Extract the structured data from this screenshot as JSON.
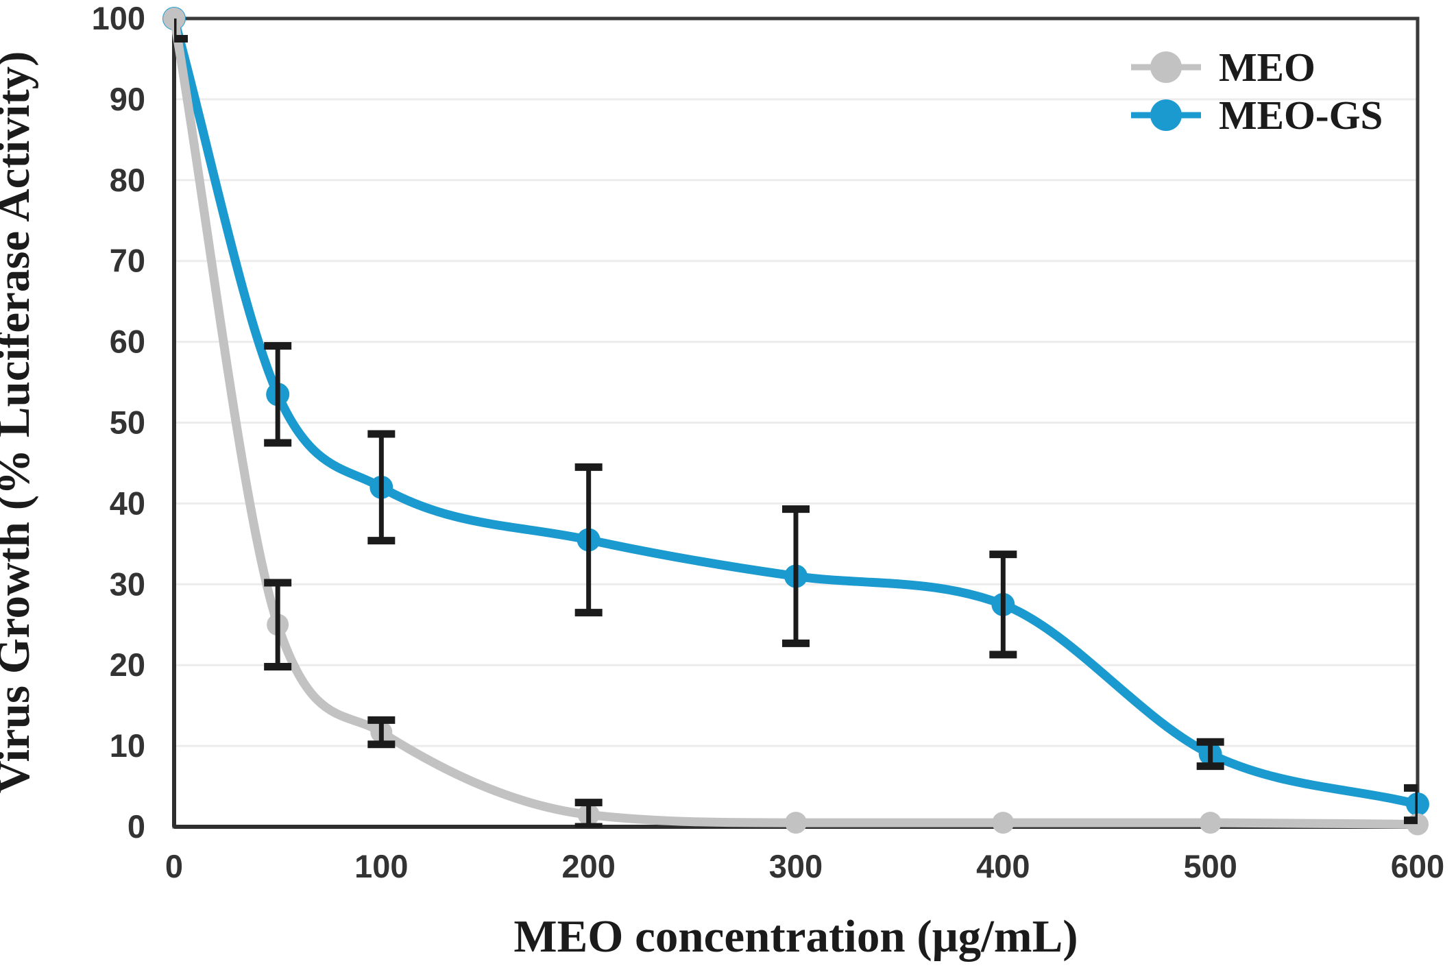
{
  "chart_data": {
    "type": "line",
    "title": "",
    "xlabel": "MEO concentration (μg/mL)",
    "ylabel": "Virus Growth (% Luciferase Activity)",
    "xlim": [
      0,
      600
    ],
    "ylim": [
      0,
      100
    ],
    "x_ticks": [
      0,
      100,
      200,
      300,
      400,
      500,
      600
    ],
    "y_ticks": [
      0,
      10,
      20,
      30,
      40,
      50,
      60,
      70,
      80,
      90,
      100
    ],
    "grid": "horizontal-light",
    "legend_position": "top-right-inside",
    "x": [
      0,
      50,
      100,
      200,
      300,
      400,
      500,
      600
    ],
    "series": [
      {
        "name": "MEO",
        "color": "#c2c2c2",
        "values": [
          100,
          25,
          11.7,
          1.5,
          0.5,
          0.5,
          0.5,
          0.3
        ],
        "yerr": [
          2.5,
          5.2,
          1.5,
          1.5,
          0,
          0,
          0,
          0
        ]
      },
      {
        "name": "MEO-GS",
        "color": "#1b9ad0",
        "values": [
          100,
          53.5,
          42,
          35.5,
          31,
          27.5,
          9,
          2.8
        ],
        "yerr": [
          0,
          6,
          6.6,
          9,
          8.3,
          6.2,
          1.5,
          2
        ]
      }
    ],
    "error_bar_color": "#1b1b1b",
    "axis_color": "#3a3a3a",
    "grid_color": "#ececec",
    "tick_label_color": "#333333"
  }
}
